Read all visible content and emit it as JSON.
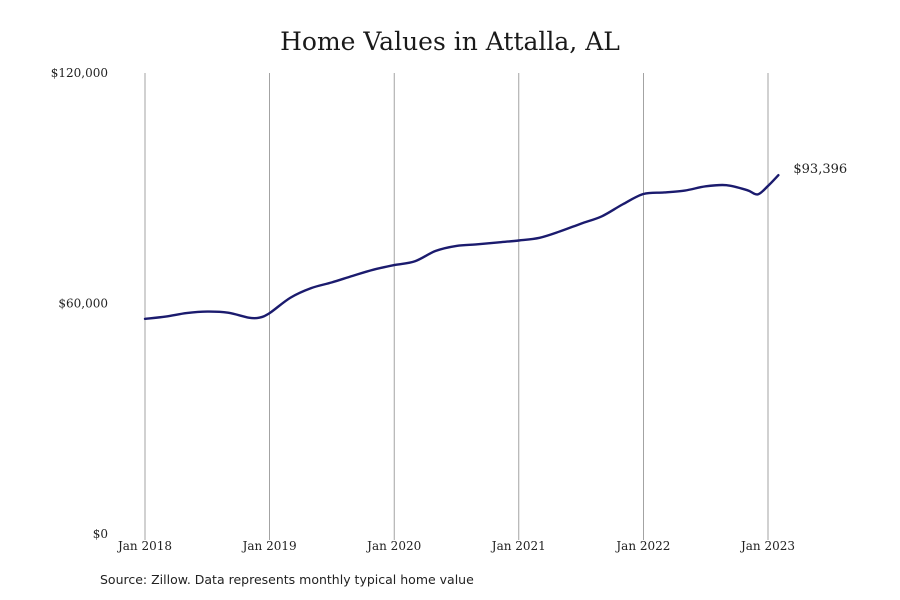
{
  "chart_data": {
    "type": "line",
    "title": "Home Values in Attalla, AL",
    "xlabel": "",
    "ylabel": "",
    "ylim": [
      0,
      120000
    ],
    "xlim": [
      "2018-01",
      "2023-03"
    ],
    "y_ticks": [
      {
        "value": 0,
        "label": "$0"
      },
      {
        "value": 60000,
        "label": "$60,000"
      },
      {
        "value": 120000,
        "label": "$120,000"
      }
    ],
    "x_ticks": [
      {
        "value": "2018-01",
        "label": "Jan 2018"
      },
      {
        "value": "2019-01",
        "label": "Jan 2019"
      },
      {
        "value": "2020-01",
        "label": "Jan 2020"
      },
      {
        "value": "2021-01",
        "label": "Jan 2021"
      },
      {
        "value": "2022-01",
        "label": "Jan 2022"
      },
      {
        "value": "2023-01",
        "label": "Jan 2023"
      }
    ],
    "grid": "vertical",
    "line_color": "#1b1b6e",
    "end_label": "$93,396",
    "series": [
      {
        "values": [
          {
            "x": "2018-01",
            "y": 56000
          },
          {
            "x": "2018-03",
            "y": 56600
          },
          {
            "x": "2018-05",
            "y": 57500
          },
          {
            "x": "2018-07",
            "y": 57900
          },
          {
            "x": "2018-09",
            "y": 57600
          },
          {
            "x": "2018-11",
            "y": 56300
          },
          {
            "x": "2018-12",
            "y": 56300
          },
          {
            "x": "2019-01",
            "y": 57500
          },
          {
            "x": "2019-03",
            "y": 61500
          },
          {
            "x": "2019-05",
            "y": 64000
          },
          {
            "x": "2019-07",
            "y": 65500
          },
          {
            "x": "2019-09",
            "y": 67200
          },
          {
            "x": "2019-11",
            "y": 68800
          },
          {
            "x": "2020-01",
            "y": 70000
          },
          {
            "x": "2020-03",
            "y": 71000
          },
          {
            "x": "2020-05",
            "y": 73700
          },
          {
            "x": "2020-07",
            "y": 75000
          },
          {
            "x": "2020-09",
            "y": 75400
          },
          {
            "x": "2020-11",
            "y": 75900
          },
          {
            "x": "2021-01",
            "y": 76400
          },
          {
            "x": "2021-03",
            "y": 77100
          },
          {
            "x": "2021-05",
            "y": 78800
          },
          {
            "x": "2021-07",
            "y": 80800
          },
          {
            "x": "2021-09",
            "y": 82700
          },
          {
            "x": "2021-11",
            "y": 85800
          },
          {
            "x": "2022-01",
            "y": 88500
          },
          {
            "x": "2022-03",
            "y": 88900
          },
          {
            "x": "2022-05",
            "y": 89400
          },
          {
            "x": "2022-07",
            "y": 90500
          },
          {
            "x": "2022-09",
            "y": 90800
          },
          {
            "x": "2022-11",
            "y": 89500
          },
          {
            "x": "2022-12",
            "y": 88400
          },
          {
            "x": "2023-01",
            "y": 90600
          },
          {
            "x": "2023-02",
            "y": 93396
          }
        ]
      }
    ]
  }
}
